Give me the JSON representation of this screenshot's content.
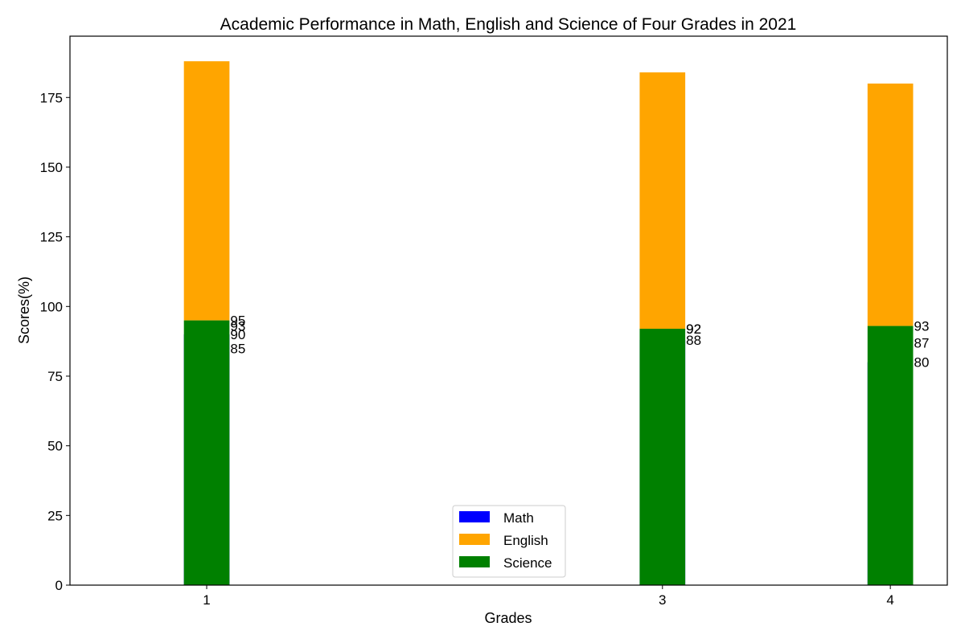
{
  "chart_data": {
    "type": "bar",
    "title": "Academic Performance in Math, English and Science of Four Grades in 2021",
    "xlabel": "Grades",
    "ylabel": "Scores(%)",
    "categories": [
      1,
      3,
      4
    ],
    "x_tick_labels": [
      "1",
      "3",
      "4"
    ],
    "xlim": [
      0.4,
      4.25
    ],
    "ylim": [
      0,
      197
    ],
    "y_ticks": [
      0,
      25,
      50,
      75,
      100,
      125,
      150,
      175
    ],
    "bar_width": 0.2,
    "grid": false,
    "legend_placement": "lower center",
    "series": [
      {
        "name": "Math",
        "color": "#0000ff",
        "values": [
          90,
          88,
          80
        ],
        "bottoms": [
          0,
          0,
          0
        ]
      },
      {
        "name": "English",
        "color": "#ffa500",
        "values": [
          93,
          92,
          87
        ],
        "bottoms": [
          95,
          92,
          93
        ]
      },
      {
        "name": "Science",
        "color": "#008000",
        "values": [
          95,
          92,
          93
        ],
        "bottoms": [
          0,
          0,
          0
        ]
      }
    ],
    "data_labels": [
      {
        "x": 1,
        "y": 95,
        "text": "95"
      },
      {
        "x": 1,
        "y": 93,
        "text": "93"
      },
      {
        "x": 1,
        "y": 90,
        "text": "90"
      },
      {
        "x": 1,
        "y": 85,
        "text": "85"
      },
      {
        "x": 3,
        "y": 92,
        "text": "92"
      },
      {
        "x": 3,
        "y": 92,
        "text": "92"
      },
      {
        "x": 3,
        "y": 88,
        "text": "88"
      },
      {
        "x": 4,
        "y": 93,
        "text": "93"
      },
      {
        "x": 4,
        "y": 87,
        "text": "87"
      },
      {
        "x": 4,
        "y": 80,
        "text": "80"
      }
    ]
  }
}
